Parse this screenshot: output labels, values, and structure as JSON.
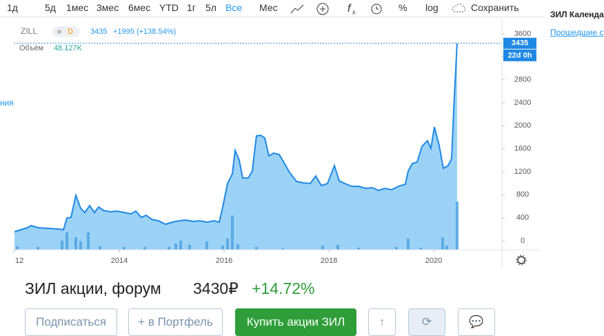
{
  "toolbar": {
    "ranges": [
      "1д",
      "5д",
      "1мес",
      "3мес",
      "6мес",
      "YTD",
      "1г",
      "5л",
      "Все"
    ],
    "interval": "Мес",
    "percent": "%",
    "log": "log",
    "save": "Сохранить"
  },
  "side": {
    "left_cut": "ния",
    "title": "ЗИЛ Календа",
    "link": "Прошедшие с"
  },
  "chart_data": {
    "type": "area",
    "symbol": "ZILL",
    "interval": "D",
    "last_value": 3435,
    "change": "+1995 (+138.54%)",
    "volume_label": "Объём",
    "volume_value": "48.127K",
    "time_left": "22d 0h",
    "color": "#1e88e5",
    "fill": "#90cdf4",
    "x": [
      2012.0,
      2012.118,
      2012.25,
      2012.316,
      2012.447,
      2012.645,
      2012.842,
      2012.934,
      2013.0,
      2013.079,
      2013.171,
      2013.263,
      2013.342,
      2013.434,
      2013.526,
      2013.605,
      2013.697,
      2013.829,
      2013.961,
      2014.092,
      2014.224,
      2014.316,
      2014.421,
      2014.513,
      2014.618,
      2014.75,
      2014.882,
      2015.013,
      2015.145,
      2015.276,
      2015.408,
      2015.539,
      2015.671,
      2015.803,
      2015.908,
      2015.974,
      2016.066,
      2016.158,
      2016.211,
      2016.289,
      2016.355,
      2016.461,
      2016.539,
      2016.618,
      2016.697,
      2016.776,
      2016.855,
      2016.947,
      2017.053,
      2017.145,
      2017.25,
      2017.382,
      2017.513,
      2017.645,
      2017.75,
      2017.855,
      2017.974,
      2018.105,
      2018.197,
      2018.303,
      2018.434,
      2018.566,
      2018.697,
      2018.829,
      2018.947,
      2019.066,
      2019.197,
      2019.329,
      2019.461,
      2019.513,
      2019.592,
      2019.684,
      2019.776,
      2019.882,
      2019.947,
      2020.013,
      2020.105,
      2020.184,
      2020.276,
      2020.342,
      2020.382,
      2020.447
    ],
    "values": [
      156,
      192,
      228,
      264,
      228,
      216,
      204,
      192,
      396,
      408,
      792,
      564,
      492,
      612,
      492,
      588,
      528,
      504,
      516,
      492,
      468,
      516,
      408,
      444,
      372,
      348,
      288,
      324,
      348,
      360,
      336,
      348,
      324,
      348,
      324,
      588,
      996,
      1164,
      1572,
      1404,
      1092,
      1092,
      1212,
      1824,
      1836,
      1788,
      1476,
      1524,
      1500,
      1356,
      1188,
      1032,
      1008,
      996,
      1128,
      960,
      996,
      1308,
      1044,
      996,
      948,
      948,
      912,
      924,
      876,
      912,
      888,
      948,
      984,
      1212,
      1344,
      1368,
      1644,
      1740,
      1608,
      1980,
      1656,
      1260,
      1308,
      1428,
      2268,
      3435
    ],
    "volume": {
      "color": "#4fa3e3",
      "x": [
        2012.053,
        2012.447,
        2012.908,
        2013.0,
        2013.171,
        2013.263,
        2013.408,
        2013.632,
        2014.092,
        2014.487,
        2014.947,
        2015.079,
        2015.171,
        2015.342,
        2015.671,
        2015.974,
        2016.066,
        2016.158,
        2016.263,
        2016.618,
        2017.118,
        2017.882,
        2018.171,
        2018.566,
        2019.289,
        2019.513,
        2019.75,
        2020.171,
        2020.25,
        2020.447
      ],
      "values": [
        3.5,
        2.8,
        9.1,
        17.4,
        12.6,
        8.4,
        17.4,
        3.5,
        2.8,
        2.8,
        2.8,
        6.3,
        9.1,
        4.9,
        8.4,
        4.2,
        11.2,
        34.2,
        5.6,
        2.8,
        1.4,
        4.2,
        4.9,
        2.1,
        2.8,
        11.2,
        2.1,
        12.6,
        4.2,
        48.127
      ]
    },
    "xlim": [
      2011.987,
      2021.303
    ],
    "xticks": [
      {
        "value": 2012,
        "label": "12"
      },
      2014,
      2016,
      2018,
      2020
    ],
    "ylim": [
      -156,
      3828
    ],
    "yticks": [
      0,
      400,
      800,
      1200,
      1600,
      2000,
      2400,
      2800,
      3200,
      3600
    ]
  },
  "footer": {
    "title": "ЗИЛ акции, форум",
    "price": "3430₽",
    "change": "+14.72%",
    "buttons": [
      "Подписаться",
      "+ в Портфель",
      "Купить акции ЗИЛ"
    ]
  }
}
